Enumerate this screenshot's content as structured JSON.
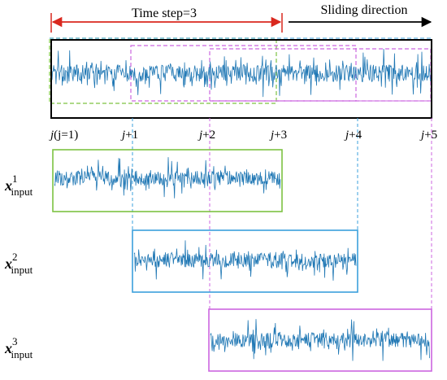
{
  "header": {
    "time_step_label": "Time step=3",
    "sliding_label": "Sliding direction"
  },
  "ticks": [
    {
      "var": "j",
      "rest": "(j=1)"
    },
    {
      "var": "j",
      "rest": "+1"
    },
    {
      "var": "j",
      "rest": "+2"
    },
    {
      "var": "j",
      "rest": "+3"
    },
    {
      "var": "j",
      "rest": "+4"
    },
    {
      "var": "j",
      "rest": "+5"
    }
  ],
  "inputs": [
    {
      "base": "x",
      "sup": "1",
      "sub": "input"
    },
    {
      "base": "x",
      "sup": "2",
      "sub": "input"
    },
    {
      "base": "x",
      "sup": "3",
      "sub": "input"
    }
  ],
  "colors": {
    "signal": "#1f77b4",
    "arrow_red": "#d9281e",
    "window1": "#7dc242",
    "window2": "#3ba0dc",
    "window3": "#cc66e0",
    "frame": "#000000"
  }
}
